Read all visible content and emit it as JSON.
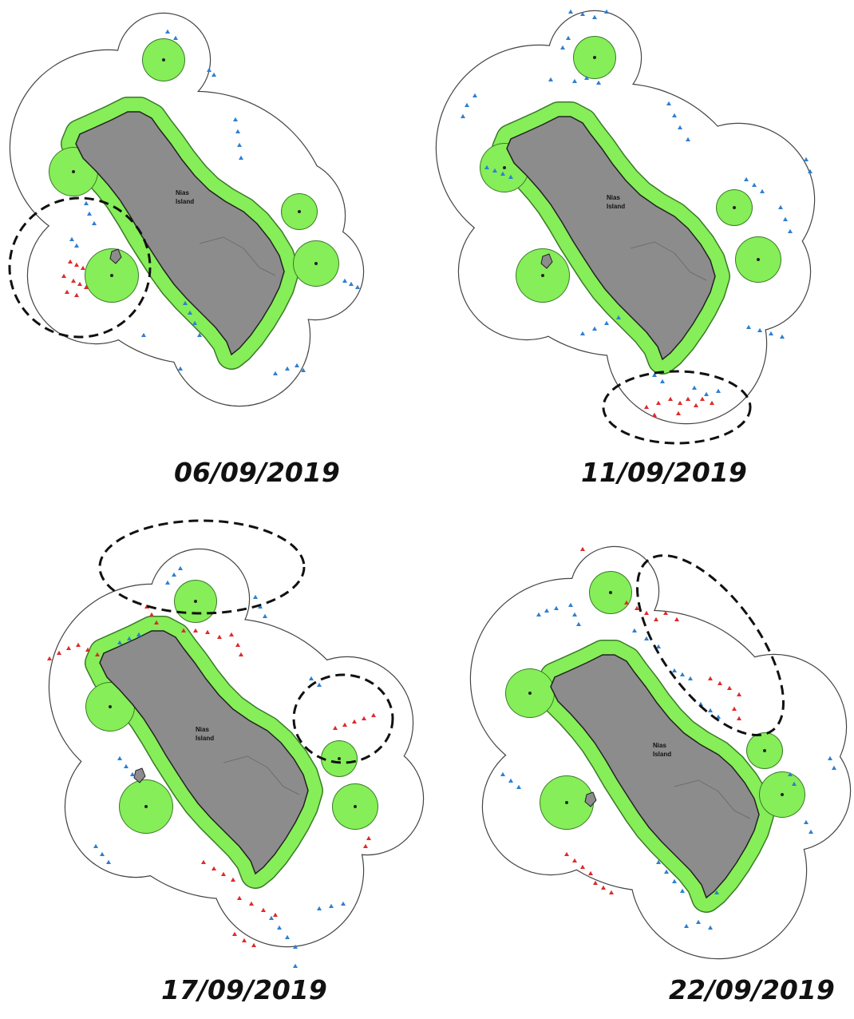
{
  "island_label": [
    "Nias",
    "Island"
  ],
  "colors": {
    "island": "#8c8c8c",
    "coastal_buffer": "#86ee58",
    "outer_boundary": "#444444",
    "blue_points": "#2f7fd0",
    "red_points": "#e02a2a",
    "highlight_ellipse": "#111111"
  },
  "icons": {
    "blue_marker": "blue-triangle-icon",
    "red_marker": "red-triangle-icon"
  },
  "panels": [
    {
      "date": "06/09/2019"
    },
    {
      "date": "11/09/2019"
    },
    {
      "date": "17/09/2019"
    },
    {
      "date": "22/09/2019"
    }
  ]
}
